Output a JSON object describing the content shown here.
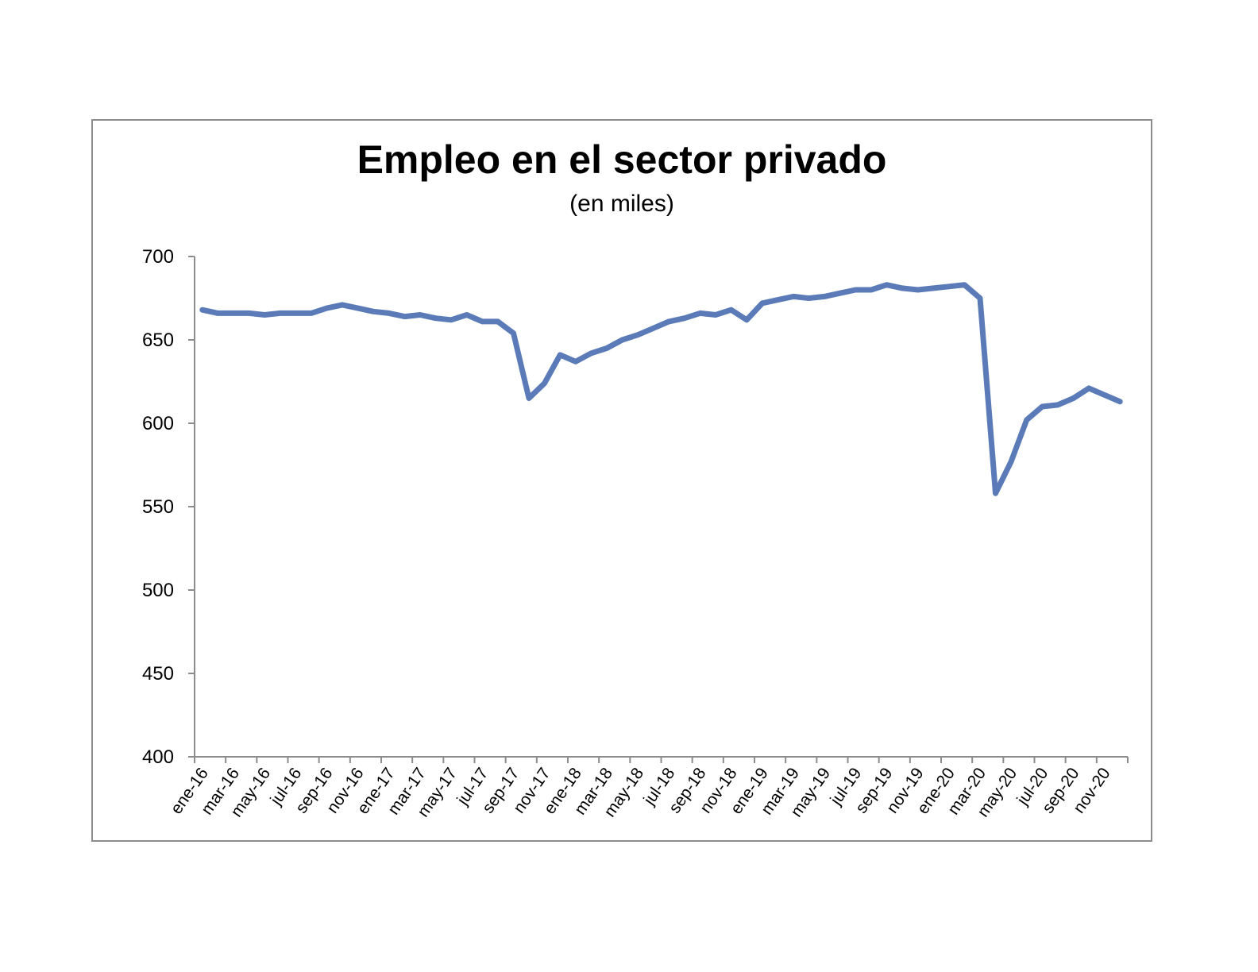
{
  "chart_data": {
    "type": "line",
    "title": "Empleo en el sector privado",
    "subtitle": "(en miles)",
    "xlabel": "",
    "ylabel": "",
    "ylim": [
      400,
      700
    ],
    "yticks": [
      "700",
      "650",
      "600",
      "550",
      "500",
      "450",
      "400"
    ],
    "ytick_values": [
      700,
      650,
      600,
      550,
      500,
      450,
      400
    ],
    "xtick_labels": [
      "ene-16",
      "mar-16",
      "may-16",
      "jul-16",
      "sep-16",
      "nov-16",
      "ene-17",
      "mar-17",
      "may-17",
      "jul-17",
      "sep-17",
      "nov-17",
      "ene-18",
      "mar-18",
      "may-18",
      "jul-18",
      "sep-18",
      "nov-18",
      "ene-19",
      "mar-19",
      "may-19",
      "jul-19",
      "sep-19",
      "nov-19",
      "ene-20",
      "mar-20",
      "may-20",
      "jul-20",
      "sep-20",
      "nov-20"
    ],
    "categories": [
      "ene-16",
      "feb-16",
      "mar-16",
      "abr-16",
      "may-16",
      "jun-16",
      "jul-16",
      "ago-16",
      "sep-16",
      "oct-16",
      "nov-16",
      "dic-16",
      "ene-17",
      "feb-17",
      "mar-17",
      "abr-17",
      "may-17",
      "jun-17",
      "jul-17",
      "ago-17",
      "sep-17",
      "oct-17",
      "nov-17",
      "dic-17",
      "ene-18",
      "feb-18",
      "mar-18",
      "abr-18",
      "may-18",
      "jun-18",
      "jul-18",
      "ago-18",
      "sep-18",
      "oct-18",
      "nov-18",
      "dic-18",
      "ene-19",
      "feb-19",
      "mar-19",
      "abr-19",
      "may-19",
      "jun-19",
      "jul-19",
      "ago-19",
      "sep-19",
      "oct-19",
      "nov-19",
      "dic-19",
      "ene-20",
      "feb-20",
      "mar-20",
      "abr-20",
      "may-20",
      "jun-20",
      "jul-20",
      "ago-20",
      "sep-20",
      "oct-20",
      "nov-20",
      "dic-20"
    ],
    "series": [
      {
        "color": "#5b7bb8",
        "values": [
          668,
          666,
          666,
          666,
          665,
          666,
          666,
          666,
          669,
          671,
          669,
          667,
          666,
          664,
          665,
          663,
          662,
          665,
          661,
          661,
          654,
          615,
          624,
          641,
          637,
          642,
          645,
          650,
          653,
          657,
          661,
          663,
          666,
          665,
          668,
          662,
          672,
          674,
          676,
          675,
          676,
          678,
          680,
          680,
          683,
          681,
          680,
          681,
          682,
          683,
          675,
          558,
          577,
          602,
          610,
          611,
          615,
          621,
          617,
          613
        ]
      }
    ],
    "grid": false,
    "legend": "none"
  }
}
